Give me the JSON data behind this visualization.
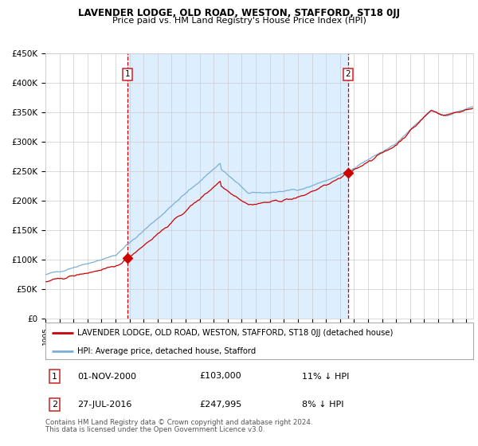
{
  "title": "LAVENDER LODGE, OLD ROAD, WESTON, STAFFORD, ST18 0JJ",
  "subtitle": "Price paid vs. HM Land Registry's House Price Index (HPI)",
  "ylim": [
    0,
    450000
  ],
  "yticks": [
    0,
    50000,
    100000,
    150000,
    200000,
    250000,
    300000,
    350000,
    400000,
    450000
  ],
  "ytick_labels": [
    "£0",
    "£50K",
    "£100K",
    "£150K",
    "£200K",
    "£250K",
    "£300K",
    "£350K",
    "£400K",
    "£450K"
  ],
  "x_start_year": 1995,
  "x_end_year": 2025,
  "purchase1_year": 2000.83,
  "purchase1_price": 103000,
  "purchase2_year": 2016.57,
  "purchase2_price": 247995,
  "legend_line1": "LAVENDER LODGE, OLD ROAD, WESTON, STAFFORD, ST18 0JJ (detached house)",
  "legend_line2": "HPI: Average price, detached house, Stafford",
  "table_row1_num": "1",
  "table_row1_date": "01-NOV-2000",
  "table_row1_price": "£103,000",
  "table_row1_hpi": "11% ↓ HPI",
  "table_row2_num": "2",
  "table_row2_date": "27-JUL-2016",
  "table_row2_price": "£247,995",
  "table_row2_hpi": "8% ↓ HPI",
  "footer_line1": "Contains HM Land Registry data © Crown copyright and database right 2024.",
  "footer_line2": "This data is licensed under the Open Government Licence v3.0.",
  "bg_shaded_color": "#ddeeff",
  "line_red_color": "#cc0000",
  "line_blue_color": "#7ab0d4",
  "dashed_line_color": "#cc0000",
  "grid_color": "#cccccc",
  "background_color": "#ffffff"
}
